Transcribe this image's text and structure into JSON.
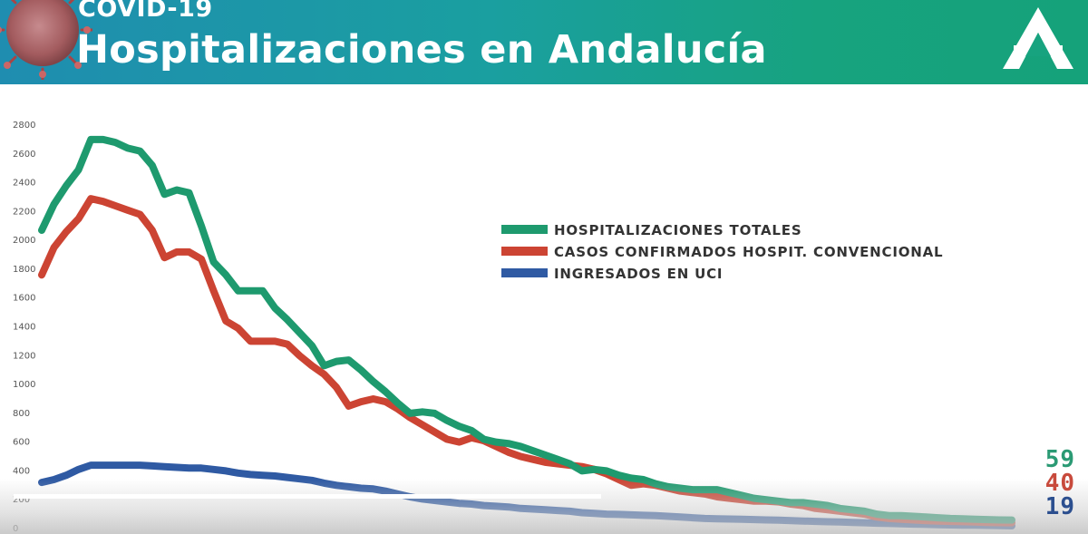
{
  "header": {
    "subtitle": "COVID-19",
    "title": "Hospitalizaciones en Andalucía"
  },
  "icons": {
    "virus": "coronavirus-icon",
    "logo": "junta-andalucia-logo-icon"
  },
  "colors": {
    "total": "#1e9a6e",
    "conv": "#cc4433",
    "uci": "#2f5aa3"
  },
  "last_values": {
    "total": "59",
    "conv": "40",
    "uci": "19"
  },
  "chart_data": {
    "type": "line",
    "ylim": [
      0,
      2800
    ],
    "yticks": [
      "0",
      "200",
      "400",
      "600",
      "800",
      "1000",
      "1200",
      "1400",
      "1600",
      "1800",
      "2000",
      "2200",
      "2400",
      "2600",
      "2800"
    ],
    "grid": false,
    "legend_position": "center-right",
    "series": [
      {
        "name": "HOSPITALIZACIONES TOTALES",
        "key": "total",
        "values": [
          2070,
          2250,
          2380,
          2490,
          2700,
          2700,
          2680,
          2640,
          2620,
          2520,
          2320,
          2350,
          2330,
          2100,
          1850,
          1760,
          1650,
          1650,
          1650,
          1530,
          1450,
          1360,
          1270,
          1130,
          1160,
          1170,
          1100,
          1020,
          950,
          870,
          800,
          810,
          800,
          750,
          710,
          680,
          620,
          600,
          590,
          570,
          540,
          510,
          480,
          450,
          400,
          410,
          400,
          370,
          350,
          340,
          310,
          290,
          280,
          270,
          270,
          270,
          250,
          230,
          210,
          200,
          190,
          180,
          180,
          170,
          160,
          140,
          130,
          120,
          100,
          90,
          90,
          85,
          80,
          75,
          70,
          68,
          65,
          62,
          60,
          59
        ]
      },
      {
        "name": "CASOS CONFIRMADOS HOSPIT. CONVENCIONAL",
        "key": "conv",
        "values": [
          1760,
          1950,
          2060,
          2150,
          2290,
          2270,
          2240,
          2210,
          2180,
          2070,
          1880,
          1920,
          1920,
          1870,
          1650,
          1440,
          1390,
          1300,
          1300,
          1300,
          1280,
          1200,
          1130,
          1070,
          980,
          850,
          880,
          900,
          880,
          830,
          770,
          720,
          670,
          620,
          600,
          630,
          610,
          570,
          530,
          500,
          480,
          460,
          450,
          440,
          430,
          410,
          380,
          340,
          300,
          310,
          300,
          280,
          260,
          250,
          240,
          220,
          210,
          200,
          190,
          190,
          185,
          170,
          160,
          140,
          130,
          120,
          110,
          100,
          80,
          70,
          65,
          60,
          55,
          52,
          50,
          48,
          45,
          43,
          41,
          40
        ]
      },
      {
        "name": "INGRESADOS EN UCI",
        "key": "uci",
        "values": [
          320,
          340,
          370,
          410,
          440,
          440,
          440,
          440,
          440,
          435,
          430,
          425,
          420,
          420,
          410,
          400,
          385,
          375,
          370,
          365,
          355,
          345,
          335,
          315,
          300,
          290,
          280,
          275,
          260,
          240,
          220,
          205,
          195,
          185,
          175,
          170,
          160,
          155,
          150,
          140,
          135,
          130,
          125,
          120,
          110,
          105,
          100,
          98,
          95,
          92,
          90,
          85,
          80,
          75,
          70,
          68,
          66,
          64,
          62,
          60,
          58,
          55,
          52,
          50,
          47,
          45,
          42,
          40,
          37,
          35,
          33,
          31,
          29,
          27,
          25,
          24,
          23,
          22,
          20,
          19
        ]
      }
    ]
  }
}
